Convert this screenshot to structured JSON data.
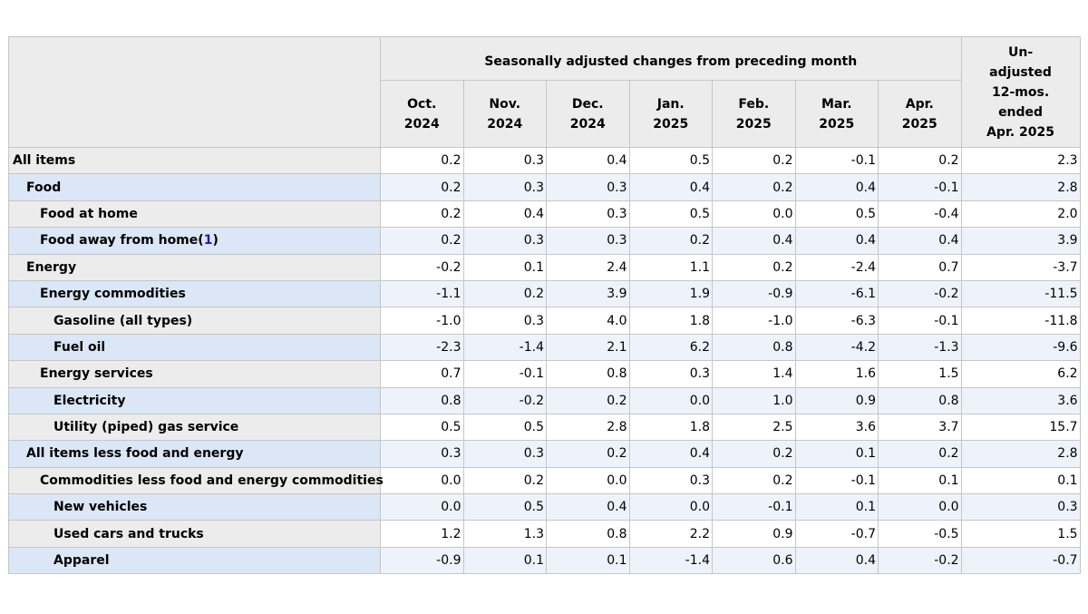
{
  "header": {
    "group_label": "Seasonally adjusted changes from preceding month",
    "months": [
      {
        "m": "Oct.",
        "y": "2024"
      },
      {
        "m": "Nov.",
        "y": "2024"
      },
      {
        "m": "Dec.",
        "y": "2024"
      },
      {
        "m": "Jan.",
        "y": "2025"
      },
      {
        "m": "Feb.",
        "y": "2025"
      },
      {
        "m": "Mar.",
        "y": "2025"
      },
      {
        "m": "Apr.",
        "y": "2025"
      }
    ],
    "unadjusted": [
      "Un-",
      "adjusted",
      "12-mos.",
      "ended",
      "Apr. 2025"
    ]
  },
  "rows": [
    {
      "label": "All items",
      "level": 0,
      "values": [
        "0.2",
        "0.3",
        "0.4",
        "0.5",
        "0.2",
        "-0.1",
        "0.2"
      ],
      "annual": "2.3"
    },
    {
      "label": "Food",
      "level": 1,
      "values": [
        "0.2",
        "0.3",
        "0.3",
        "0.4",
        "0.2",
        "0.4",
        "-0.1"
      ],
      "annual": "2.8"
    },
    {
      "label": "Food at home",
      "level": 2,
      "values": [
        "0.2",
        "0.4",
        "0.3",
        "0.5",
        "0.0",
        "0.5",
        "-0.4"
      ],
      "annual": "2.0"
    },
    {
      "label": "Food away from home",
      "footnote": "1",
      "level": 2,
      "values": [
        "0.2",
        "0.3",
        "0.3",
        "0.2",
        "0.4",
        "0.4",
        "0.4"
      ],
      "annual": "3.9"
    },
    {
      "label": "Energy",
      "level": 1,
      "values": [
        "-0.2",
        "0.1",
        "2.4",
        "1.1",
        "0.2",
        "-2.4",
        "0.7"
      ],
      "annual": "-3.7"
    },
    {
      "label": "Energy commodities",
      "level": 2,
      "values": [
        "-1.1",
        "0.2",
        "3.9",
        "1.9",
        "-0.9",
        "-6.1",
        "-0.2"
      ],
      "annual": "-11.5"
    },
    {
      "label": "Gasoline (all types)",
      "level": 3,
      "values": [
        "-1.0",
        "0.3",
        "4.0",
        "1.8",
        "-1.0",
        "-6.3",
        "-0.1"
      ],
      "annual": "-11.8"
    },
    {
      "label": "Fuel oil",
      "level": 3,
      "values": [
        "-2.3",
        "-1.4",
        "2.1",
        "6.2",
        "0.8",
        "-4.2",
        "-1.3"
      ],
      "annual": "-9.6"
    },
    {
      "label": "Energy services",
      "level": 2,
      "values": [
        "0.7",
        "-0.1",
        "0.8",
        "0.3",
        "1.4",
        "1.6",
        "1.5"
      ],
      "annual": "6.2"
    },
    {
      "label": "Electricity",
      "level": 3,
      "values": [
        "0.8",
        "-0.2",
        "0.2",
        "0.0",
        "1.0",
        "0.9",
        "0.8"
      ],
      "annual": "3.6"
    },
    {
      "label": "Utility (piped) gas service",
      "level": 3,
      "values": [
        "0.5",
        "0.5",
        "2.8",
        "1.8",
        "2.5",
        "3.6",
        "3.7"
      ],
      "annual": "15.7"
    },
    {
      "label": "All items less food and energy",
      "level": 1,
      "values": [
        "0.3",
        "0.3",
        "0.2",
        "0.4",
        "0.2",
        "0.1",
        "0.2"
      ],
      "annual": "2.8"
    },
    {
      "label": "Commodities less food and energy commodities",
      "level": 2,
      "values": [
        "0.0",
        "0.2",
        "0.0",
        "0.3",
        "0.2",
        "-0.1",
        "0.1"
      ],
      "annual": "0.1"
    },
    {
      "label": "New vehicles",
      "level": 3,
      "values": [
        "0.0",
        "0.5",
        "0.4",
        "0.0",
        "-0.1",
        "0.1",
        "0.0"
      ],
      "annual": "0.3"
    },
    {
      "label": "Used cars and trucks",
      "level": 3,
      "values": [
        "1.2",
        "1.3",
        "0.8",
        "2.2",
        "0.9",
        "-0.7",
        "-0.5"
      ],
      "annual": "1.5"
    },
    {
      "label": "Apparel",
      "level": 3,
      "values": [
        "-0.9",
        "0.1",
        "0.1",
        "-1.4",
        "0.6",
        "0.4",
        "-0.2"
      ],
      "annual": "-0.7"
    }
  ]
}
